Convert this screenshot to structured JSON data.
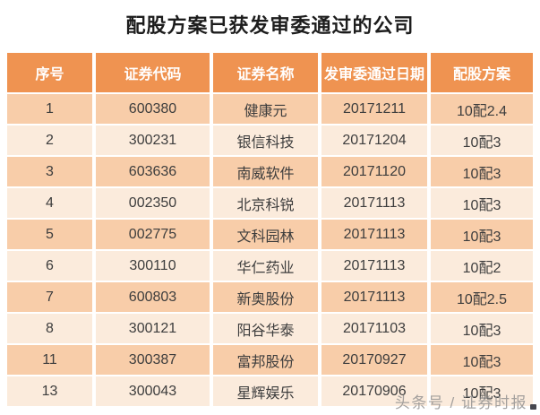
{
  "title": "配股方案已获发审委通过的公司",
  "watermark": {
    "text": "头条号 / 证券时报"
  },
  "colors": {
    "header_bg": "#EF9351",
    "row_odd_bg": "#F8CDA9",
    "row_even_bg": "#FBEBDC",
    "title_color": "#1D1D1D",
    "cell_text": "#3D3D3D",
    "header_text": "#FFFFFF",
    "watermark_color": "#8C8C8C"
  },
  "table": {
    "columns": [
      "序号",
      "证券代码",
      "证券名称",
      "发审委通过日期",
      "配股方案"
    ],
    "rows": [
      [
        "1",
        "600380",
        "健康元",
        "20171211",
        "10配2.4"
      ],
      [
        "2",
        "300231",
        "银信科技",
        "20171204",
        "10配3"
      ],
      [
        "3",
        "603636",
        "南威软件",
        "20171120",
        "10配3"
      ],
      [
        "4",
        "002350",
        "北京科锐",
        "20171113",
        "10配3"
      ],
      [
        "5",
        "002775",
        "文科园林",
        "20171113",
        "10配3"
      ],
      [
        "6",
        "300110",
        "华仁药业",
        "20171113",
        "10配2"
      ],
      [
        "7",
        "600803",
        "新奥股份",
        "20171113",
        "10配2.5"
      ],
      [
        "8",
        "300121",
        "阳谷华泰",
        "20171103",
        "10配3"
      ],
      [
        "11",
        "300387",
        "富邦股份",
        "20170927",
        "10配3"
      ],
      [
        "13",
        "300043",
        "星辉娱乐",
        "20170906",
        "10配3"
      ]
    ]
  },
  "chart_data": {
    "type": "table",
    "title": "配股方案已获发审委通过的公司",
    "columns": [
      "序号",
      "证券代码",
      "证券名称",
      "发审委通过日期",
      "配股方案"
    ],
    "rows": [
      [
        "1",
        "600380",
        "健康元",
        "20171211",
        "10配2.4"
      ],
      [
        "2",
        "300231",
        "银信科技",
        "20171204",
        "10配3"
      ],
      [
        "3",
        "603636",
        "南威软件",
        "20171120",
        "10配3"
      ],
      [
        "4",
        "002350",
        "北京科锐",
        "20171113",
        "10配3"
      ],
      [
        "5",
        "002775",
        "文科园林",
        "20171113",
        "10配3"
      ],
      [
        "6",
        "300110",
        "华仁药业",
        "20171113",
        "10配2"
      ],
      [
        "7",
        "600803",
        "新奥股份",
        "20171113",
        "10配2.5"
      ],
      [
        "8",
        "300121",
        "阳谷华泰",
        "20171103",
        "10配3"
      ],
      [
        "11",
        "300387",
        "富邦股份",
        "20170927",
        "10配3"
      ],
      [
        "13",
        "300043",
        "星辉娱乐",
        "20170906",
        "10配3"
      ]
    ],
    "layout": {
      "header_position": "top",
      "zebra_striping": true,
      "legend": "none",
      "grid": "cell-gaps-white"
    }
  }
}
